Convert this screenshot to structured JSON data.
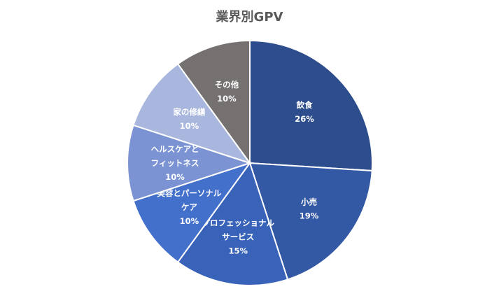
{
  "chart_data": {
    "type": "pie",
    "title": "業界別GPV",
    "slices": [
      {
        "label": [
          "飲食"
        ],
        "value": 26,
        "value_label": "26%",
        "color": "#2E4D8C"
      },
      {
        "label": [
          "小売"
        ],
        "value": 19,
        "value_label": "19%",
        "color": "#3358A4"
      },
      {
        "label": [
          "プロフェッショナル",
          "サービス"
        ],
        "value": 15,
        "value_label": "15%",
        "color": "#3863B8"
      },
      {
        "label": [
          "美容とパーソナル",
          "ケア"
        ],
        "value": 10,
        "value_label": "10%",
        "color": "#4270CB"
      },
      {
        "label": [
          "ヘルスケアと",
          "フィットネス"
        ],
        "value": 10,
        "value_label": "10%",
        "color": "#7C93D3"
      },
      {
        "label": [
          "家の修繕"
        ],
        "value": 10,
        "value_label": "10%",
        "color": "#A9B7DE"
      },
      {
        "label": [
          "その他"
        ],
        "value": 10,
        "value_label": "10%",
        "color": "#767171"
      }
    ],
    "start_angle_deg": 0,
    "direction": "clockwise",
    "border_color": "#ffffff",
    "legend": "none"
  }
}
